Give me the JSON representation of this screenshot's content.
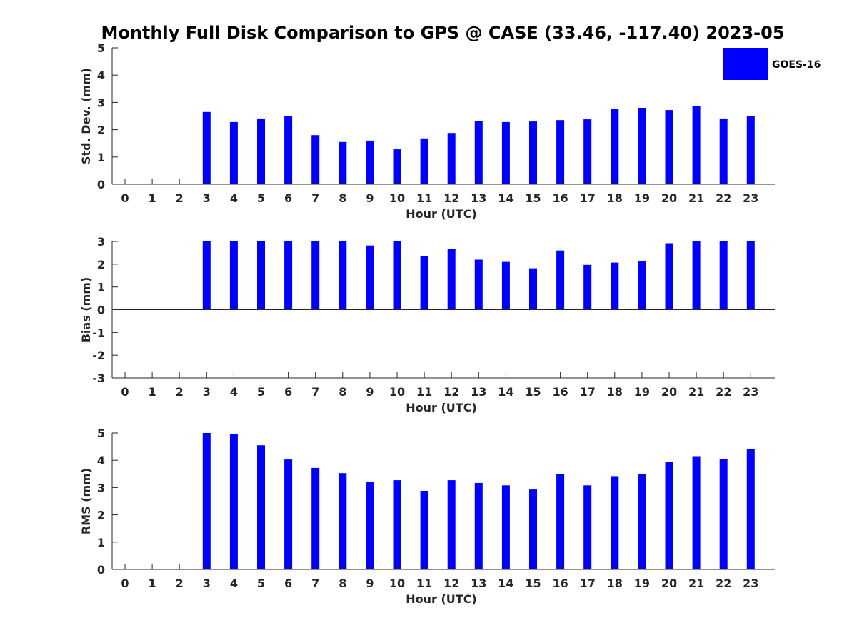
{
  "colors": {
    "bar": "#0000ff",
    "axis": "#262626",
    "background": "#ffffff"
  },
  "legend": {
    "label": "GOES-16",
    "placement": "top-right"
  },
  "chart_data": [
    {
      "type": "bar",
      "title": "Monthly Full Disk Comparison to GPS @ CASE (33.46, -117.40) 2023-05",
      "xlabel": "Hour (UTC)",
      "ylabel": "Std. Dev. (mm)",
      "categories": [
        "0",
        "1",
        "2",
        "3",
        "4",
        "5",
        "6",
        "7",
        "8",
        "9",
        "10",
        "11",
        "12",
        "13",
        "14",
        "15",
        "16",
        "17",
        "18",
        "19",
        "20",
        "21",
        "22",
        "23"
      ],
      "series": [
        {
          "name": "GOES-16",
          "values": [
            null,
            null,
            null,
            2.65,
            2.28,
            2.41,
            2.51,
            1.8,
            1.55,
            1.6,
            1.28,
            1.68,
            1.88,
            2.32,
            2.28,
            2.3,
            2.35,
            2.38,
            2.75,
            2.8,
            2.72,
            2.86,
            2.41,
            2.51
          ]
        }
      ],
      "ylim": [
        0,
        5
      ],
      "yticks": [
        0,
        1,
        2,
        3,
        4,
        5
      ],
      "ytick_labels": [
        "0",
        "1",
        "2",
        "3",
        "4",
        "5"
      ],
      "grid": false
    },
    {
      "type": "bar",
      "title": "",
      "xlabel": "Hour (UTC)",
      "ylabel": "Bias (mm)",
      "categories": [
        "0",
        "1",
        "2",
        "3",
        "4",
        "5",
        "6",
        "7",
        "8",
        "9",
        "10",
        "11",
        "12",
        "13",
        "14",
        "15",
        "16",
        "17",
        "18",
        "19",
        "20",
        "21",
        "22",
        "23"
      ],
      "series": [
        {
          "name": "GOES-16",
          "values": [
            null,
            null,
            null,
            3,
            3,
            3,
            3,
            3,
            3,
            2.82,
            3,
            2.35,
            2.67,
            2.2,
            2.1,
            1.82,
            2.6,
            1.97,
            2.07,
            2.12,
            2.92,
            3,
            3,
            3
          ]
        }
      ],
      "ylim": [
        -3,
        3
      ],
      "yticks": [
        -3,
        -2,
        -1,
        0,
        1,
        2,
        3
      ],
      "ytick_labels": [
        "-3",
        "-2",
        "-1",
        "0",
        "1",
        "2",
        "3"
      ],
      "grid": false
    },
    {
      "type": "bar",
      "title": "",
      "xlabel": "Hour (UTC)",
      "ylabel": "RMS (mm)",
      "categories": [
        "0",
        "1",
        "2",
        "3",
        "4",
        "5",
        "6",
        "7",
        "8",
        "9",
        "10",
        "11",
        "12",
        "13",
        "14",
        "15",
        "16",
        "17",
        "18",
        "19",
        "20",
        "21",
        "22",
        "23"
      ],
      "series": [
        {
          "name": "GOES-16",
          "values": [
            null,
            null,
            null,
            5,
            4.95,
            4.55,
            4.03,
            3.72,
            3.53,
            3.22,
            3.27,
            2.88,
            3.27,
            3.17,
            3.08,
            2.93,
            3.5,
            3.08,
            3.42,
            3.5,
            3.95,
            4.15,
            4.05,
            4.4
          ]
        }
      ],
      "ylim": [
        0,
        5
      ],
      "yticks": [
        0,
        1,
        2,
        3,
        4,
        5
      ],
      "ytick_labels": [
        "0",
        "1",
        "2",
        "3",
        "4",
        "5"
      ],
      "grid": false
    }
  ]
}
